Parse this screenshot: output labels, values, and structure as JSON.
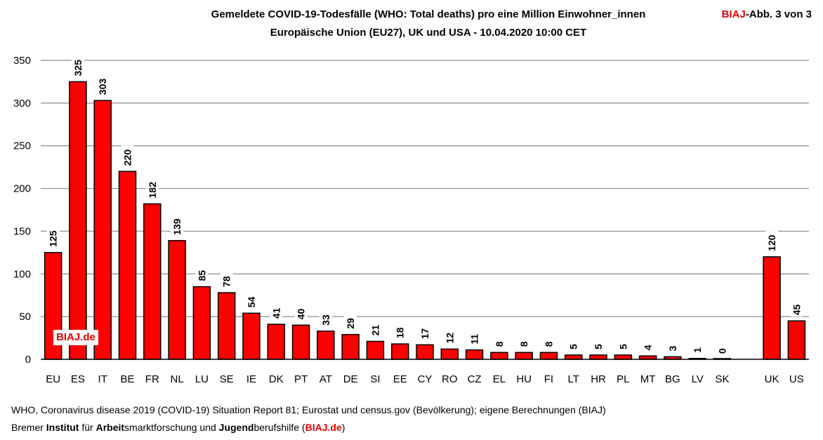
{
  "header": {
    "title_line1": "Gemeldete COVID-19-Todesfälle (WHO: Total deaths) pro eine Million Einwohner_innen",
    "title_line2": "Europäische Union (EU27), UK und USA - 10.04.2020 10:00 CET",
    "abb_brand": "BIAJ",
    "abb_rest": "-Abb. 3 von 3"
  },
  "watermark": "BIAJ.de",
  "footer": {
    "source": "WHO, Coronavirus disease 2019 (COVID-19) Situation Report 81; Eurostat und census.gov (Bevölkerung); eigene Berechnungen (BIAJ)",
    "org_parts": [
      {
        "text": "Bremer ",
        "style": "normal"
      },
      {
        "text": "Institut",
        "style": "bold"
      },
      {
        "text": " für ",
        "style": "normal"
      },
      {
        "text": "Arbeit",
        "style": "bold"
      },
      {
        "text": "smarktforschung und ",
        "style": "normal"
      },
      {
        "text": "Jugend",
        "style": "bold"
      },
      {
        "text": "berufshilfe (",
        "style": "normal"
      },
      {
        "text": "BIAJ.de",
        "style": "boldred"
      },
      {
        "text": ")",
        "style": "normal"
      }
    ]
  },
  "colors": {
    "bar": "#ff0000",
    "bar_border": "#000000",
    "grid": "#8c8c8c",
    "brand_red": "#e00000"
  },
  "chart_data": {
    "type": "bar",
    "title": "Gemeldete COVID-19-Todesfälle (WHO: Total deaths) pro eine Million Einwohner_innen",
    "subtitle": "Europäische Union (EU27), UK und USA - 10.04.2020 10:00 CET",
    "categories": [
      "EU",
      "ES",
      "IT",
      "BE",
      "FR",
      "NL",
      "LU",
      "SE",
      "IE",
      "DK",
      "PT",
      "AT",
      "DE",
      "SI",
      "EE",
      "CY",
      "RO",
      "CZ",
      "EL",
      "HU",
      "FI",
      "LT",
      "HR",
      "PL",
      "MT",
      "BG",
      "LV",
      "SK",
      "",
      "UK",
      "US"
    ],
    "values": [
      125,
      325,
      303,
      220,
      182,
      139,
      85,
      78,
      54,
      41,
      40,
      33,
      29,
      21,
      18,
      17,
      12,
      11,
      8,
      8,
      8,
      5,
      5,
      5,
      4,
      3,
      1,
      0,
      null,
      120,
      45
    ],
    "labels": [
      "125",
      "325",
      "303",
      "220",
      "182",
      "139",
      "85",
      "78",
      "54",
      "41",
      "40",
      "33",
      "29",
      "21",
      "18",
      "17",
      "12",
      "11",
      "8",
      "8",
      "8",
      "5",
      "5",
      "5",
      "4",
      "3",
      "1",
      "0",
      "",
      "120",
      "45"
    ],
    "yticks": [
      0,
      50,
      100,
      150,
      200,
      250,
      300,
      350
    ],
    "ylim": [
      0,
      350
    ],
    "xlabel": "",
    "ylabel": "",
    "grid": true,
    "legend": "none"
  }
}
